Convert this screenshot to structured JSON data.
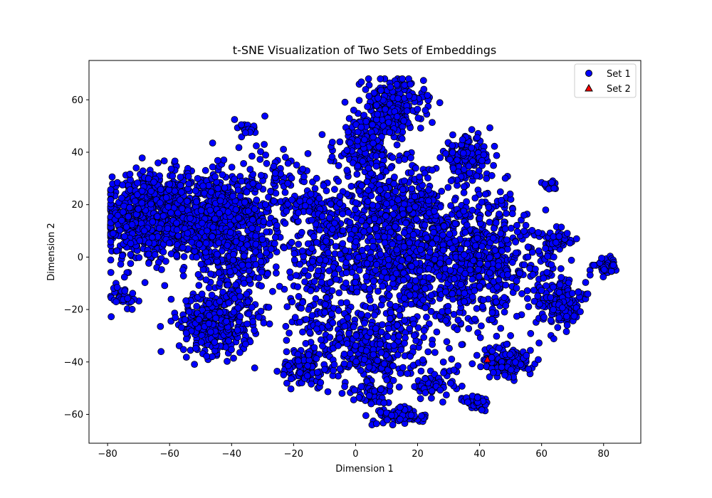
{
  "chart_data": {
    "type": "scatter",
    "title": "t-SNE Visualization of Two Sets of Embeddings",
    "xlabel": "Dimension 1",
    "ylabel": "Dimension 2",
    "xlim": [
      -86,
      92
    ],
    "ylim": [
      -71,
      75
    ],
    "xticks": [
      -80,
      -60,
      -40,
      -20,
      0,
      20,
      40,
      60,
      80
    ],
    "yticks": [
      -60,
      -40,
      -20,
      0,
      20,
      40,
      60
    ],
    "grid": false,
    "legend_position": "top-right",
    "series": [
      {
        "name": "Set 1",
        "marker": "circle",
        "color": "#0000ff",
        "edgecolor": "#000000",
        "clusters": [
          {
            "cx": -68,
            "cy": 15,
            "sx": 7,
            "sy": 9,
            "n": 520
          },
          {
            "cx": -50,
            "cy": 15,
            "sx": 8,
            "sy": 9,
            "n": 520
          },
          {
            "cx": -37,
            "cy": 5,
            "sx": 7,
            "sy": 10,
            "n": 320
          },
          {
            "cx": -45,
            "cy": -25,
            "sx": 6,
            "sy": 6,
            "n": 360
          },
          {
            "cx": -75,
            "cy": -15,
            "sx": 2,
            "sy": 2,
            "n": 40
          },
          {
            "cx": -35,
            "cy": 49,
            "sx": 1.5,
            "sy": 1,
            "n": 15
          },
          {
            "cx": -30,
            "cy": 25,
            "sx": 8,
            "sy": 10,
            "n": 160
          },
          {
            "cx": -13,
            "cy": 20,
            "sx": 4,
            "sy": 3,
            "n": 60
          },
          {
            "cx": -10,
            "cy": 0,
            "sx": 7,
            "sy": 11,
            "n": 180
          },
          {
            "cx": -16,
            "cy": -42,
            "sx": 4,
            "sy": 4,
            "n": 110
          },
          {
            "cx": -12,
            "cy": -22,
            "sx": 5,
            "sy": 6,
            "n": 70
          },
          {
            "cx": 12,
            "cy": 58,
            "sx": 5,
            "sy": 5,
            "n": 260
          },
          {
            "cx": 3,
            "cy": 42,
            "sx": 5,
            "sy": 6,
            "n": 160
          },
          {
            "cx": 36,
            "cy": 38,
            "sx": 4,
            "sy": 4,
            "n": 140
          },
          {
            "cx": 10,
            "cy": 22,
            "sx": 9,
            "sy": 7,
            "n": 220
          },
          {
            "cx": 20,
            "cy": 0,
            "sx": 14,
            "sy": 14,
            "n": 1000
          },
          {
            "cx": 42,
            "cy": 0,
            "sx": 9,
            "sy": 12,
            "n": 320
          },
          {
            "cx": 5,
            "cy": -35,
            "sx": 8,
            "sy": 7,
            "n": 260
          },
          {
            "cx": 5,
            "cy": -52,
            "sx": 3,
            "sy": 2,
            "n": 50
          },
          {
            "cx": 15,
            "cy": -60,
            "sx": 4,
            "sy": 2,
            "n": 90
          },
          {
            "cx": 25,
            "cy": -48,
            "sx": 4,
            "sy": 3,
            "n": 60
          },
          {
            "cx": 39,
            "cy": -56,
            "sx": 2,
            "sy": 2,
            "n": 40
          },
          {
            "cx": 49,
            "cy": -40,
            "sx": 4,
            "sy": 3,
            "n": 140
          },
          {
            "cx": 66,
            "cy": -17,
            "sx": 3,
            "sy": 4,
            "n": 160
          },
          {
            "cx": 60,
            "cy": 0,
            "sx": 4,
            "sy": 5,
            "n": 50
          },
          {
            "cx": 66,
            "cy": 7,
            "sx": 2,
            "sy": 1.5,
            "n": 40
          },
          {
            "cx": 63,
            "cy": 27,
            "sx": 1.5,
            "sy": 1,
            "n": 20
          },
          {
            "cx": 81,
            "cy": -3,
            "sx": 1.5,
            "sy": 1.5,
            "n": 40
          },
          {
            "cx": 77,
            "cy": -3,
            "sx": 2,
            "sy": 2,
            "n": 6
          }
        ]
      },
      {
        "name": "Set 2",
        "marker": "triangle",
        "color": "#ff0000",
        "edgecolor": "#000000",
        "points": [
          [
            42.5,
            -39
          ]
        ]
      }
    ]
  }
}
